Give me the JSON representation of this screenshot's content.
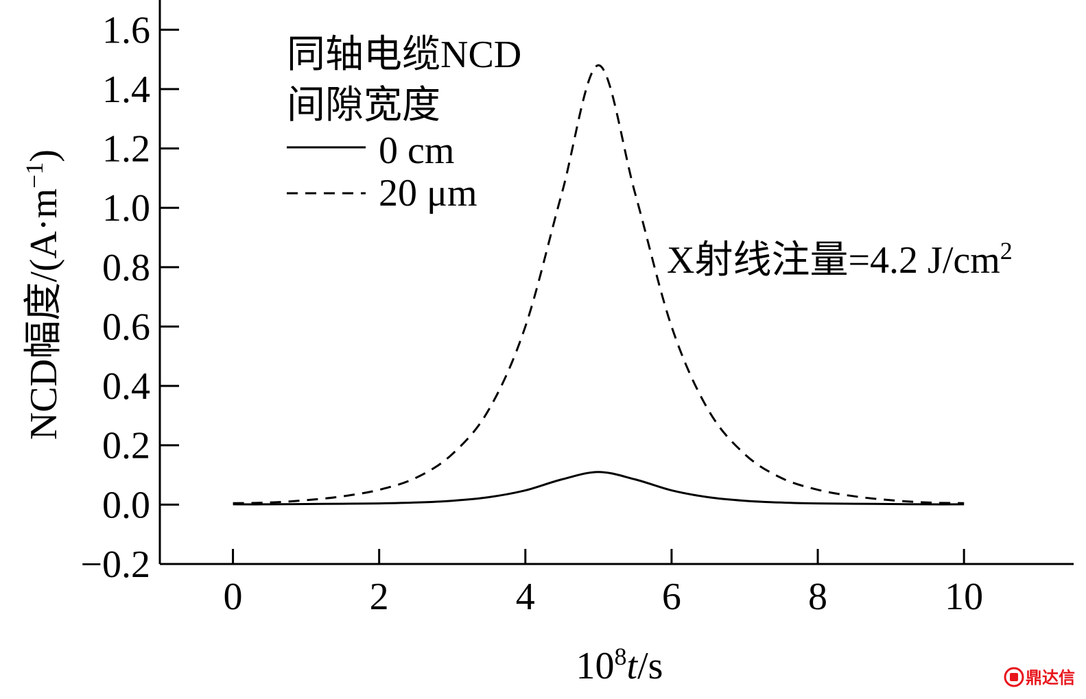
{
  "chart_data": {
    "type": "line",
    "xlim": [
      -1,
      11.5
    ],
    "ylim": [
      -0.2,
      1.7
    ],
    "x_ticks": [
      "0",
      "2",
      "4",
      "6",
      "8",
      "10"
    ],
    "x_tick_values": [
      0,
      2,
      4,
      6,
      8,
      10
    ],
    "y_ticks": [
      "−0.2",
      "0.0",
      "0.2",
      "0.4",
      "0.6",
      "0.8",
      "1.0",
      "1.2",
      "1.4",
      "1.6"
    ],
    "y_tick_values": [
      -0.2,
      0.0,
      0.2,
      0.4,
      0.6,
      0.8,
      1.0,
      1.2,
      1.4,
      1.6
    ],
    "xlabel": {
      "prefix": "10",
      "sup": "8",
      "var": "t",
      "suffix": "/s"
    },
    "ylabel": {
      "main": "NCD幅度/(A·m",
      "sup": "−1",
      "close": ")"
    },
    "legend_title_line1": "同轴电缆NCD",
    "legend_title_line2": "间隙宽度",
    "legend_placement": "top-left",
    "annotation": {
      "text": "X射线注量=4.2 J/cm",
      "sup": "2"
    },
    "grid": false,
    "series": [
      {
        "name": "0 cm",
        "style": "solid",
        "color": "#000000",
        "x": [
          0,
          0.5,
          1,
          1.5,
          2,
          2.5,
          3,
          3.5,
          4,
          4.5,
          5,
          5.5,
          6,
          6.5,
          7,
          7.5,
          8,
          8.5,
          9,
          9.5,
          10
        ],
        "values": [
          0.001,
          0.001,
          0.002,
          0.003,
          0.004,
          0.007,
          0.013,
          0.025,
          0.048,
          0.085,
          0.11,
          0.085,
          0.048,
          0.025,
          0.013,
          0.007,
          0.004,
          0.003,
          0.002,
          0.001,
          0.001
        ]
      },
      {
        "name": "20 μm",
        "style": "dashed",
        "color": "#000000",
        "x": [
          0,
          0.5,
          1,
          1.5,
          2,
          2.5,
          3,
          3.5,
          4,
          4.5,
          5,
          5.5,
          6,
          6.5,
          7,
          7.5,
          8,
          8.5,
          9,
          9.5,
          10
        ],
        "values": [
          0.005,
          0.007,
          0.015,
          0.028,
          0.05,
          0.09,
          0.17,
          0.32,
          0.6,
          1.05,
          1.48,
          1.05,
          0.6,
          0.32,
          0.17,
          0.09,
          0.05,
          0.028,
          0.015,
          0.007,
          0.005
        ]
      }
    ]
  },
  "watermark": {
    "text": "鼎达信",
    "icon": "seal-logo",
    "color": "#e8161c"
  }
}
